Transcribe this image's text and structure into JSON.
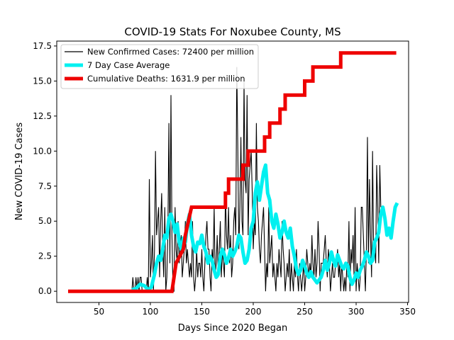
{
  "chart_data": {
    "type": "line",
    "title": "COVID-19 Stats For Noxubee County, MS",
    "xlabel": "Days Since 2020 Began",
    "ylabel": "New COVID-19 Cases",
    "xlim": [
      9,
      351
    ],
    "ylim": [
      -0.8,
      17.85
    ],
    "xticks": [
      50,
      100,
      150,
      200,
      250,
      300,
      350
    ],
    "yticks": [
      0,
      2.5,
      5,
      7.5,
      10,
      12.5,
      15,
      17.5
    ],
    "xtick_labels": [
      "50",
      "100",
      "150",
      "200",
      "250",
      "300",
      "350"
    ],
    "ytick_labels": [
      "0.0",
      "2.5",
      "5.0",
      "7.5",
      "10.0",
      "12.5",
      "15.0",
      "17.5"
    ],
    "grid": false,
    "legend_position": "top-left",
    "series": [
      {
        "name": "New Confirmed Cases: 72400 per million",
        "color": "#000000",
        "x_start": 82,
        "values": [
          0,
          1,
          0,
          0,
          1,
          0,
          1,
          0,
          1,
          1,
          0,
          0,
          0,
          0,
          0,
          1,
          0,
          8,
          1,
          2,
          4,
          0,
          3,
          10,
          4,
          5,
          6,
          1,
          5,
          7,
          3,
          1,
          6,
          0,
          1,
          4,
          12,
          2,
          14,
          4,
          0,
          0,
          6,
          3,
          2,
          5,
          2,
          3,
          4,
          1,
          2,
          3,
          5,
          2,
          3,
          2,
          1,
          2,
          1,
          5,
          1,
          0,
          1,
          3,
          1,
          2,
          2,
          1,
          3,
          1,
          0,
          2,
          4,
          5,
          3,
          3,
          1,
          0,
          3,
          2,
          6,
          1,
          2,
          4,
          1,
          3,
          5,
          1,
          3,
          2,
          1,
          7,
          4,
          3,
          6,
          2,
          4,
          1,
          2,
          5,
          6,
          4,
          16,
          10,
          3,
          6,
          11,
          5,
          4,
          15,
          8,
          7,
          14,
          4,
          8,
          9,
          10,
          7,
          3,
          5,
          4,
          12,
          6,
          5,
          3,
          2,
          4,
          5,
          6,
          3,
          0,
          2,
          1,
          6,
          2,
          3,
          4,
          1,
          2,
          1,
          0,
          2,
          1,
          3,
          2,
          1,
          5,
          3,
          2,
          0,
          1,
          2,
          1,
          3,
          0,
          2,
          1,
          0,
          2,
          1,
          3,
          1,
          0,
          2,
          1,
          0,
          1,
          2,
          0,
          1,
          3,
          2,
          1,
          2,
          1,
          4,
          2,
          1,
          3,
          1,
          2,
          5,
          3,
          0,
          2,
          2,
          2,
          3,
          4,
          2,
          1,
          3,
          2,
          0,
          1,
          2,
          1,
          1,
          2,
          2,
          3,
          1,
          2,
          0,
          2,
          1,
          0,
          1,
          0,
          2,
          1,
          5,
          0,
          3,
          2,
          4,
          1,
          6,
          0,
          2,
          1,
          0,
          1,
          6,
          6,
          4,
          2,
          0,
          3,
          11,
          2,
          8,
          4,
          1,
          10,
          3,
          3,
          2,
          9,
          6,
          2,
          9,
          6
        ]
      },
      {
        "name": "7 Day Case Average",
        "color": "#00f0f0",
        "points": [
          [
            82,
            0.1
          ],
          [
            86,
            0.2
          ],
          [
            90,
            0.5
          ],
          [
            94,
            0.4
          ],
          [
            98,
            0.1
          ],
          [
            101,
            0.3
          ],
          [
            104,
            1.2
          ],
          [
            106,
            2.0
          ],
          [
            108,
            2.5
          ],
          [
            110,
            2.2
          ],
          [
            112,
            3.0
          ],
          [
            114,
            4.0
          ],
          [
            116,
            3.8
          ],
          [
            118,
            5.2
          ],
          [
            120,
            5.5
          ],
          [
            122,
            5.0
          ],
          [
            124,
            4.2
          ],
          [
            126,
            4.8
          ],
          [
            128,
            3.5
          ],
          [
            130,
            3.0
          ],
          [
            132,
            3.8
          ],
          [
            134,
            3.5
          ],
          [
            136,
            4.8
          ],
          [
            138,
            5.5
          ],
          [
            140,
            4.0
          ],
          [
            142,
            3.2
          ],
          [
            144,
            2.8
          ],
          [
            146,
            3.5
          ],
          [
            148,
            3.4
          ],
          [
            150,
            4.0
          ],
          [
            152,
            3.2
          ],
          [
            154,
            2.8
          ],
          [
            156,
            2.0
          ],
          [
            158,
            2.5
          ],
          [
            160,
            2.2
          ],
          [
            162,
            1.5
          ],
          [
            164,
            1.0
          ],
          [
            166,
            1.2
          ],
          [
            168,
            2.5
          ],
          [
            170,
            3.0
          ],
          [
            172,
            2.6
          ],
          [
            174,
            2.0
          ],
          [
            176,
            2.4
          ],
          [
            178,
            3.0
          ],
          [
            180,
            2.5
          ],
          [
            182,
            2.8
          ],
          [
            184,
            3.2
          ],
          [
            186,
            4.0
          ],
          [
            188,
            3.8
          ],
          [
            190,
            2.8
          ],
          [
            192,
            2.0
          ],
          [
            194,
            2.2
          ],
          [
            196,
            3.0
          ],
          [
            198,
            4.5
          ],
          [
            200,
            5.0
          ],
          [
            202,
            7.0
          ],
          [
            204,
            7.8
          ],
          [
            206,
            6.5
          ],
          [
            208,
            7.5
          ],
          [
            210,
            8.5
          ],
          [
            212,
            9.0
          ],
          [
            214,
            7.0
          ],
          [
            216,
            6.5
          ],
          [
            218,
            5.0
          ],
          [
            220,
            4.5
          ],
          [
            222,
            5.5
          ],
          [
            224,
            4.8
          ],
          [
            226,
            3.8
          ],
          [
            228,
            4.2
          ],
          [
            230,
            5.0
          ],
          [
            232,
            4.2
          ],
          [
            234,
            3.8
          ],
          [
            236,
            4.5
          ],
          [
            238,
            3.2
          ],
          [
            240,
            2.5
          ],
          [
            242,
            1.6
          ],
          [
            244,
            1.2
          ],
          [
            246,
            1.5
          ],
          [
            248,
            2.2
          ],
          [
            250,
            1.8
          ],
          [
            252,
            1.3
          ],
          [
            254,
            1.0
          ],
          [
            256,
            1.4
          ],
          [
            258,
            1.0
          ],
          [
            260,
            0.8
          ],
          [
            262,
            0.6
          ],
          [
            264,
            0.8
          ],
          [
            266,
            1.0
          ],
          [
            268,
            1.5
          ],
          [
            270,
            2.2
          ],
          [
            272,
            1.5
          ],
          [
            274,
            2.0
          ],
          [
            276,
            2.8
          ],
          [
            278,
            2.2
          ],
          [
            280,
            1.8
          ],
          [
            282,
            2.6
          ],
          [
            284,
            2.2
          ],
          [
            286,
            1.8
          ],
          [
            288,
            1.6
          ],
          [
            290,
            2.0
          ],
          [
            292,
            1.8
          ],
          [
            294,
            1.0
          ],
          [
            296,
            0.5
          ],
          [
            298,
            0.8
          ],
          [
            300,
            1.3
          ],
          [
            302,
            1.0
          ],
          [
            304,
            1.5
          ],
          [
            306,
            1.8
          ],
          [
            308,
            2.2
          ],
          [
            310,
            2.8
          ],
          [
            312,
            2.5
          ],
          [
            314,
            2.0
          ],
          [
            316,
            2.2
          ],
          [
            318,
            3.5
          ],
          [
            320,
            3.8
          ],
          [
            322,
            4.2
          ],
          [
            324,
            5.5
          ],
          [
            326,
            6.0
          ],
          [
            328,
            5.2
          ],
          [
            330,
            4.0
          ],
          [
            332,
            4.5
          ],
          [
            334,
            3.8
          ],
          [
            336,
            5.0
          ],
          [
            338,
            6.0
          ],
          [
            340,
            6.3
          ]
        ]
      },
      {
        "name": "Cumulative Deaths: 1631.9 per million",
        "color": "#ee0000",
        "points": [
          [
            20,
            0
          ],
          [
            121,
            0
          ],
          [
            123,
            1
          ],
          [
            125,
            2
          ],
          [
            132,
            3
          ],
          [
            134,
            4
          ],
          [
            137,
            5
          ],
          [
            140,
            6
          ],
          [
            173,
            6
          ],
          [
            173,
            7
          ],
          [
            176,
            7
          ],
          [
            176,
            8
          ],
          [
            190,
            8
          ],
          [
            190,
            9
          ],
          [
            195,
            9
          ],
          [
            195,
            10
          ],
          [
            211,
            10
          ],
          [
            211,
            11
          ],
          [
            216,
            11
          ],
          [
            216,
            12
          ],
          [
            226,
            12
          ],
          [
            226,
            13
          ],
          [
            231,
            13
          ],
          [
            231,
            14
          ],
          [
            250,
            14
          ],
          [
            250,
            15
          ],
          [
            258,
            15
          ],
          [
            258,
            16
          ],
          [
            285,
            16
          ],
          [
            285,
            17
          ],
          [
            339,
            17
          ]
        ]
      }
    ]
  }
}
